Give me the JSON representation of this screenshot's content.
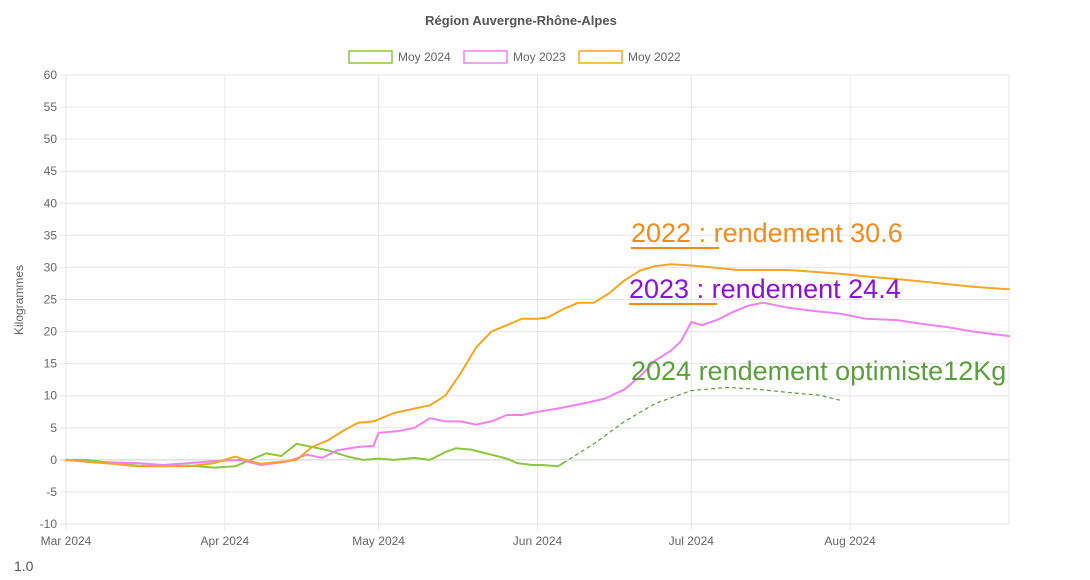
{
  "chart_data": {
    "type": "line",
    "title": "Région Auvergne-Rhône-Alpes",
    "ylabel": "Kilogrammes",
    "xlabel": "",
    "ylim": [
      -10,
      60
    ],
    "yticks": [
      60,
      55,
      50,
      45,
      40,
      35,
      30,
      25,
      20,
      15,
      10,
      5,
      0,
      -5,
      -10
    ],
    "xticks": [
      "Mar 2024",
      "Apr 2024",
      "May 2024",
      "Jun 2024",
      "Jul 2024",
      "Aug 2024"
    ],
    "grid": true,
    "legend_position": "top",
    "series": [
      {
        "name": "Moy 2024",
        "color": "#8dc63f",
        "points": [
          [
            "2024-03-01",
            0
          ],
          [
            "2024-03-05",
            0
          ],
          [
            "2024-03-10",
            -0.5
          ],
          [
            "2024-03-15",
            -0.9
          ],
          [
            "2024-03-20",
            -1
          ],
          [
            "2024-03-25",
            -0.9
          ],
          [
            "2024-03-30",
            -1.2
          ],
          [
            "2024-04-03",
            -1
          ],
          [
            "2024-04-06",
            0
          ],
          [
            "2024-04-09",
            1
          ],
          [
            "2024-04-12",
            0.6
          ],
          [
            "2024-04-15",
            2.5
          ],
          [
            "2024-04-18",
            2
          ],
          [
            "2024-04-21",
            1.5
          ],
          [
            "2024-04-25",
            0.5
          ],
          [
            "2024-04-28",
            0
          ],
          [
            "2024-05-01",
            0.2
          ],
          [
            "2024-05-04",
            0
          ],
          [
            "2024-05-08",
            0.3
          ],
          [
            "2024-05-11",
            0
          ],
          [
            "2024-05-14",
            1.2
          ],
          [
            "2024-05-16",
            1.8
          ],
          [
            "2024-05-19",
            1.6
          ],
          [
            "2024-05-23",
            0.8
          ],
          [
            "2024-05-26",
            0.2
          ],
          [
            "2024-05-28",
            -0.5
          ],
          [
            "2024-05-31",
            -0.8
          ],
          [
            "2024-06-02",
            -0.8
          ],
          [
            "2024-06-05",
            -1
          ],
          [
            "2024-06-06",
            -0.5
          ]
        ]
      },
      {
        "name": "Moy 2023",
        "color": "#ee82ee",
        "points": [
          [
            "2024-03-01",
            0
          ],
          [
            "2024-03-05",
            -0.3
          ],
          [
            "2024-03-10",
            -0.4
          ],
          [
            "2024-03-15",
            -0.5
          ],
          [
            "2024-03-20",
            -0.8
          ],
          [
            "2024-03-25",
            -0.5
          ],
          [
            "2024-03-30",
            -0.2
          ],
          [
            "2024-04-04",
            0
          ],
          [
            "2024-04-08",
            -0.8
          ],
          [
            "2024-04-13",
            -0.3
          ],
          [
            "2024-04-17",
            0.8
          ],
          [
            "2024-04-20",
            0.3
          ],
          [
            "2024-04-23",
            1.5
          ],
          [
            "2024-04-27",
            2
          ],
          [
            "2024-04-30",
            2.2
          ],
          [
            "2024-05-01",
            4.2
          ],
          [
            "2024-05-05",
            4.5
          ],
          [
            "2024-05-08",
            5
          ],
          [
            "2024-05-11",
            6.5
          ],
          [
            "2024-05-14",
            6
          ],
          [
            "2024-05-17",
            6
          ],
          [
            "2024-05-20",
            5.5
          ],
          [
            "2024-05-23",
            6
          ],
          [
            "2024-05-26",
            7
          ],
          [
            "2024-05-29",
            7
          ],
          [
            "2024-06-01",
            7.5
          ],
          [
            "2024-06-05",
            8
          ],
          [
            "2024-06-10",
            8.8
          ],
          [
            "2024-06-14",
            9.5
          ],
          [
            "2024-06-18",
            11
          ],
          [
            "2024-06-21",
            13
          ],
          [
            "2024-06-24",
            15.5
          ],
          [
            "2024-06-27",
            17
          ],
          [
            "2024-06-29",
            18.5
          ],
          [
            "2024-07-01",
            21.5
          ],
          [
            "2024-07-03",
            21
          ],
          [
            "2024-07-06",
            21.8
          ],
          [
            "2024-07-09",
            23
          ],
          [
            "2024-07-12",
            24
          ],
          [
            "2024-07-15",
            24.5
          ],
          [
            "2024-07-20",
            23.7
          ],
          [
            "2024-07-25",
            23.2
          ],
          [
            "2024-07-30",
            22.8
          ],
          [
            "2024-08-04",
            22
          ],
          [
            "2024-08-10",
            21.8
          ],
          [
            "2024-08-15",
            21.2
          ],
          [
            "2024-08-20",
            20.7
          ],
          [
            "2024-08-25",
            20
          ],
          [
            "2024-08-30",
            19.5
          ],
          [
            "2024-09-01",
            19.3
          ]
        ]
      },
      {
        "name": "Moy 2022",
        "color": "#f5a623",
        "points": [
          [
            "2024-03-01",
            0
          ],
          [
            "2024-03-05",
            -0.3
          ],
          [
            "2024-03-10",
            -0.6
          ],
          [
            "2024-03-15",
            -1
          ],
          [
            "2024-03-20",
            -1
          ],
          [
            "2024-03-25",
            -1
          ],
          [
            "2024-03-30",
            -0.5
          ],
          [
            "2024-04-03",
            0.5
          ],
          [
            "2024-04-05",
            0
          ],
          [
            "2024-04-08",
            -0.6
          ],
          [
            "2024-04-12",
            -0.3
          ],
          [
            "2024-04-15",
            0
          ],
          [
            "2024-04-18",
            2
          ],
          [
            "2024-04-21",
            3
          ],
          [
            "2024-04-24",
            4.5
          ],
          [
            "2024-04-27",
            5.8
          ],
          [
            "2024-04-30",
            6
          ],
          [
            "2024-05-04",
            7.3
          ],
          [
            "2024-05-08",
            8
          ],
          [
            "2024-05-11",
            8.5
          ],
          [
            "2024-05-14",
            10
          ],
          [
            "2024-05-17",
            13.5
          ],
          [
            "2024-05-20",
            17.5
          ],
          [
            "2024-05-23",
            20
          ],
          [
            "2024-05-26",
            21
          ],
          [
            "2024-05-29",
            22
          ],
          [
            "2024-06-01",
            22
          ],
          [
            "2024-06-03",
            22.2
          ],
          [
            "2024-06-06",
            23.5
          ],
          [
            "2024-06-09",
            24.5
          ],
          [
            "2024-06-12",
            24.5
          ],
          [
            "2024-06-15",
            26
          ],
          [
            "2024-06-18",
            28
          ],
          [
            "2024-06-21",
            29.5
          ],
          [
            "2024-06-24",
            30.2
          ],
          [
            "2024-06-27",
            30.5
          ],
          [
            "2024-07-01",
            30.3
          ],
          [
            "2024-07-05",
            30
          ],
          [
            "2024-07-10",
            29.6
          ],
          [
            "2024-07-15",
            29.6
          ],
          [
            "2024-07-20",
            29.6
          ],
          [
            "2024-07-25",
            29.3
          ],
          [
            "2024-07-30",
            29
          ],
          [
            "2024-08-04",
            28.6
          ],
          [
            "2024-08-10",
            28.2
          ],
          [
            "2024-08-15",
            27.8
          ],
          [
            "2024-08-20",
            27.4
          ],
          [
            "2024-08-25",
            27
          ],
          [
            "2024-08-30",
            26.7
          ],
          [
            "2024-09-01",
            26.6
          ]
        ]
      }
    ],
    "projection_2024": {
      "color": "#5aa03c",
      "points": [
        [
          "2024-06-06",
          -0.5
        ],
        [
          "2024-06-12",
          2.5
        ],
        [
          "2024-06-18",
          6
        ],
        [
          "2024-06-24",
          8.8
        ],
        [
          "2024-07-01",
          10.8
        ],
        [
          "2024-07-08",
          11.3
        ],
        [
          "2024-07-14",
          11
        ],
        [
          "2024-07-20",
          10.5
        ],
        [
          "2024-07-26",
          10.1
        ],
        [
          "2024-07-30",
          9.3
        ]
      ]
    },
    "annotations": [
      {
        "prefix": "2022 :",
        "text": " rendement 30.6",
        "color": "#f08c1e",
        "underline_color": "#f08c1e"
      },
      {
        "prefix": "2023 :",
        "text": " rendement 24.4",
        "color": "#8b10d8",
        "underline_color": "#f08c1e"
      },
      {
        "prefix": "",
        "text": "2024 rendement optimiste12Kg",
        "color": "#5aa03c",
        "underline_color": ""
      }
    ],
    "footer_text": "1.0"
  }
}
